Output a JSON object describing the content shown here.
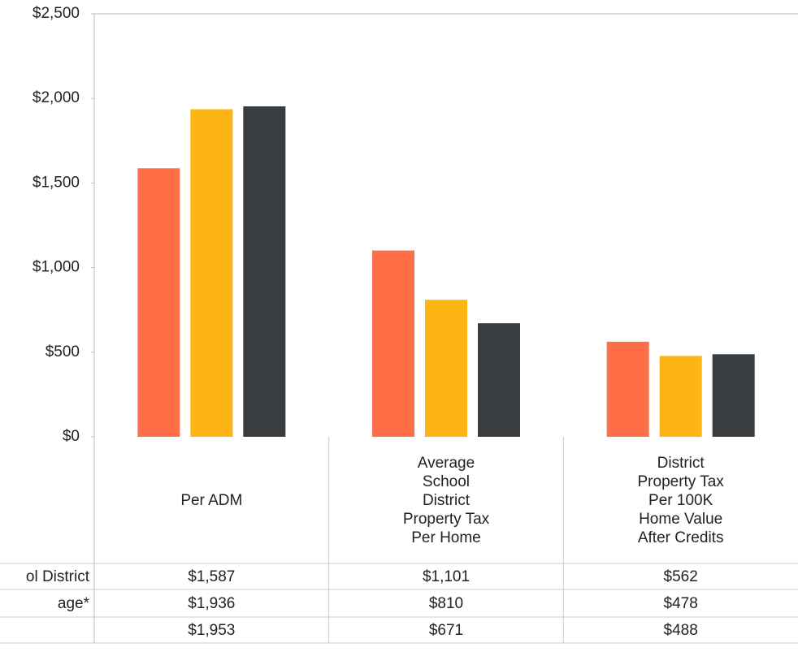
{
  "chart_data": {
    "type": "bar",
    "categories": [
      "Per ADM",
      "Average\nSchool\nDistrict\nProperty Tax\nPer Home",
      "District\nProperty Tax\nPer 100K\nHome Value\nAfter Credits"
    ],
    "series": [
      {
        "name": "ol District",
        "color": "#ff6f47",
        "values": [
          1587,
          1101,
          562
        ],
        "value_labels": [
          "$1,587",
          "$1,101",
          "$562"
        ]
      },
      {
        "name": "age*",
        "color": "#fdb515",
        "values": [
          1936,
          810,
          478
        ],
        "value_labels": [
          "$1,936",
          "$810",
          "$478"
        ]
      },
      {
        "name": null,
        "color": "#3a3d40",
        "values": [
          1953,
          671,
          488
        ],
        "value_labels": [
          "$1,953",
          "$671",
          "$488"
        ]
      }
    ],
    "ylim": [
      0,
      2500
    ],
    "yticks": [
      {
        "value": 0,
        "label": "$0"
      },
      {
        "value": 500,
        "label": "$500"
      },
      {
        "value": 1000,
        "label": "$1,000"
      },
      {
        "value": 1500,
        "label": "$1,500"
      },
      {
        "value": 2000,
        "label": "$2,000"
      },
      {
        "value": 2500,
        "label": "$2,500"
      }
    ]
  }
}
